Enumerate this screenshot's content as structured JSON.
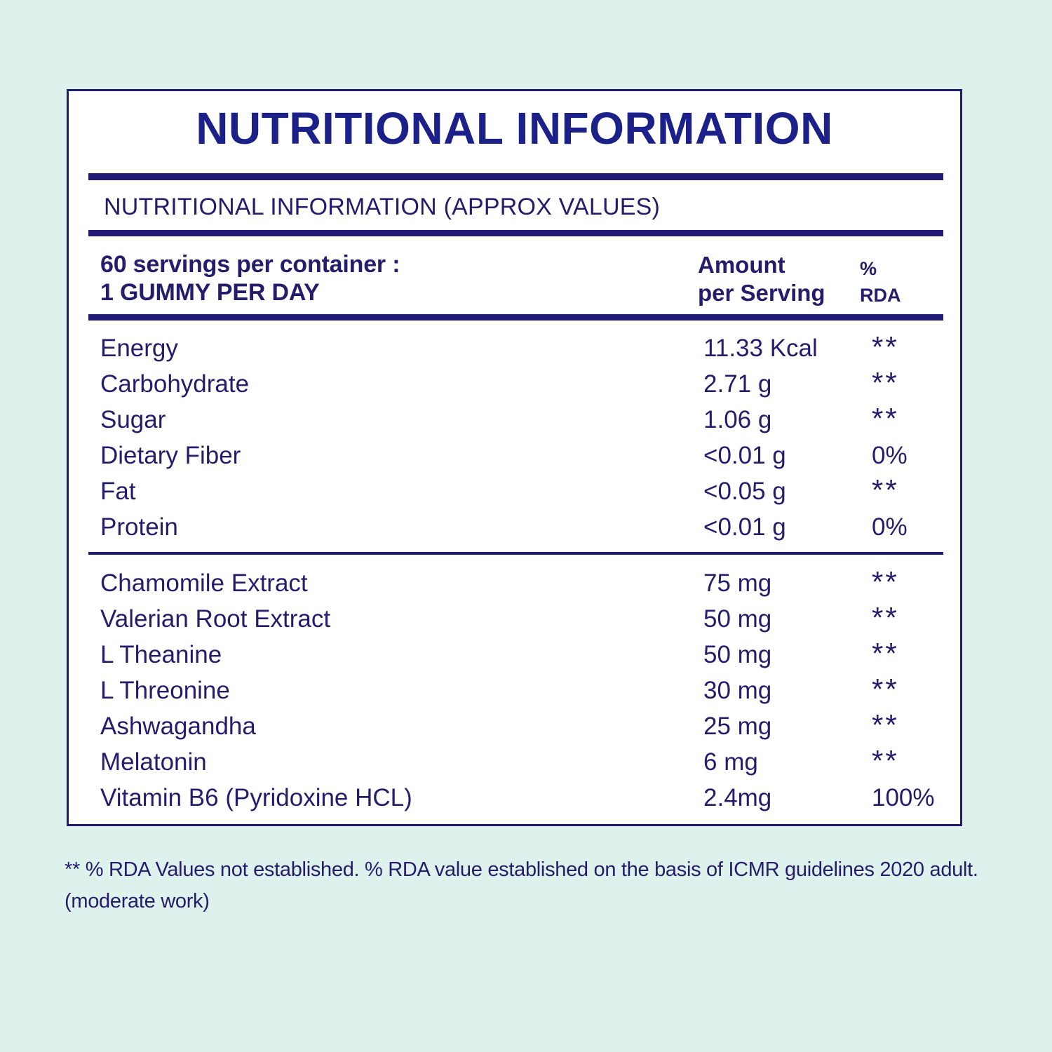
{
  "page": {
    "title": "NUTRITIONAL INFORMATION",
    "subtitle": "NUTRITIONAL INFORMATION (APPROX VALUES)"
  },
  "header": {
    "servings_line1": "60 servings per container :",
    "servings_line2": "1 GUMMY PER DAY",
    "amount_col_line1": "Amount",
    "amount_col_line2": "per Serving",
    "rda_col_line1": "%",
    "rda_col_line2": "RDA"
  },
  "table": {
    "section1": [
      {
        "label": "Energy",
        "amount": "11.33 Kcal",
        "rda": "**"
      },
      {
        "label": "Carbohydrate",
        "amount": "2.71 g",
        "rda": "**"
      },
      {
        "label": "Sugar",
        "amount": "1.06 g",
        "rda": "**"
      },
      {
        "label": "Dietary Fiber",
        "amount": "<0.01 g",
        "rda": "0%"
      },
      {
        "label": "Fat",
        "amount": "<0.05 g",
        "rda": "**"
      },
      {
        "label": "Protein",
        "amount": "<0.01 g",
        "rda": "0%"
      }
    ],
    "section2": [
      {
        "label": "Chamomile Extract",
        "amount": "75 mg",
        "rda": "**"
      },
      {
        "label": "Valerian Root Extract",
        "amount": "50 mg",
        "rda": "**"
      },
      {
        "label": "L Theanine",
        "amount": "50 mg",
        "rda": "**"
      },
      {
        "label": "L Threonine",
        "amount": "30 mg",
        "rda": "**"
      },
      {
        "label": "Ashwagandha",
        "amount": "25 mg",
        "rda": "**"
      },
      {
        "label": "Melatonin",
        "amount": "6 mg",
        "rda": "**"
      },
      {
        "label": "Vitamin B6 (Pyridoxine HCL)",
        "amount": "2.4mg",
        "rda": "100%"
      }
    ]
  },
  "footnote": {
    "line1": "** % RDA Values not established. % RDA value established on the basis of ICMR guidelines 2020 adult.",
    "line2": "(moderate work)"
  },
  "colors": {
    "background": "#dff1ec",
    "panel": "#ffffff",
    "text_navy": "#241d6b",
    "bar_navy": "#211b76",
    "title_blue": "#1b2189"
  }
}
